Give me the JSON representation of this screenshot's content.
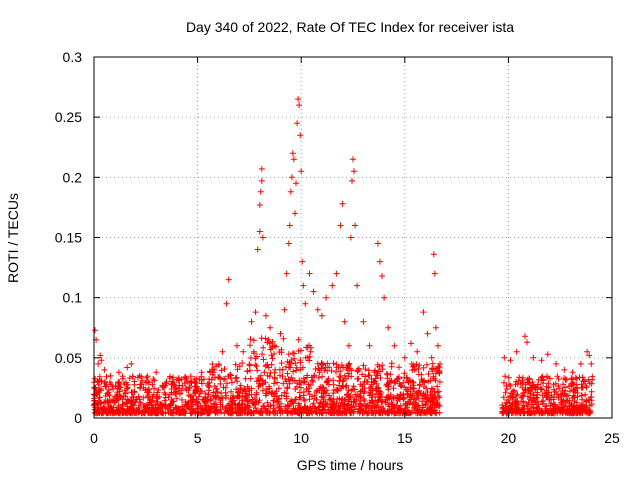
{
  "chart_data": {
    "type": "scatter",
    "title": "Day 340 of 2022, Rate Of TEC Index for receiver ista",
    "xlabel": "GPS time / hours",
    "ylabel": "ROTI / TECUs",
    "xlim": [
      0,
      25
    ],
    "ylim": [
      0,
      0.3
    ],
    "xticks": [
      0,
      5,
      10,
      15,
      20,
      25
    ],
    "xtick_labels": [
      "0",
      "5",
      "10",
      "15",
      "20",
      "25"
    ],
    "yticks": [
      0,
      0.05,
      0.1,
      0.15,
      0.2,
      0.25,
      0.3
    ],
    "ytick_labels": [
      "0",
      "0.05",
      "0.1",
      "0.15",
      "0.2",
      "0.25",
      "0.3"
    ],
    "grid": true,
    "legend": "none",
    "marker": "plus",
    "series_color": "#ff0000",
    "data_gap": [
      16.7,
      19.7
    ],
    "series": [
      {
        "points": [
          [
            0.05,
            0.073
          ],
          [
            0.1,
            0.065
          ],
          [
            0.2,
            0.045
          ],
          [
            0.3,
            0.052
          ],
          [
            0.35,
            0.048
          ],
          [
            0.5,
            0.04
          ],
          [
            0.8,
            0.035
          ],
          [
            1.2,
            0.038
          ],
          [
            1.6,
            0.042
          ],
          [
            1.8,
            0.045
          ],
          [
            2.2,
            0.035
          ],
          [
            2.6,
            0.03
          ],
          [
            3.0,
            0.038
          ],
          [
            3.5,
            0.03
          ],
          [
            4.0,
            0.032
          ],
          [
            4.5,
            0.03
          ],
          [
            5.2,
            0.038
          ],
          [
            5.8,
            0.04
          ],
          [
            6.2,
            0.055
          ],
          [
            6.4,
            0.095
          ],
          [
            6.5,
            0.115
          ],
          [
            6.9,
            0.06
          ],
          [
            7.2,
            0.055
          ],
          [
            7.6,
            0.08
          ],
          [
            7.8,
            0.088
          ],
          [
            7.9,
            0.14
          ],
          [
            8.0,
            0.155
          ],
          [
            8.0,
            0.177
          ],
          [
            8.05,
            0.188
          ],
          [
            8.1,
            0.197
          ],
          [
            8.1,
            0.207
          ],
          [
            8.15,
            0.15
          ],
          [
            8.3,
            0.085
          ],
          [
            8.5,
            0.075
          ],
          [
            8.7,
            0.06
          ],
          [
            9.0,
            0.07
          ],
          [
            9.2,
            0.09
          ],
          [
            9.3,
            0.12
          ],
          [
            9.4,
            0.145
          ],
          [
            9.45,
            0.16
          ],
          [
            9.5,
            0.188
          ],
          [
            9.55,
            0.2
          ],
          [
            9.6,
            0.22
          ],
          [
            9.65,
            0.215
          ],
          [
            9.7,
            0.17
          ],
          [
            9.75,
            0.195
          ],
          [
            9.8,
            0.245
          ],
          [
            9.85,
            0.265
          ],
          [
            9.9,
            0.26
          ],
          [
            9.95,
            0.235
          ],
          [
            10.0,
            0.205
          ],
          [
            10.05,
            0.13
          ],
          [
            10.1,
            0.11
          ],
          [
            10.2,
            0.095
          ],
          [
            10.4,
            0.12
          ],
          [
            10.6,
            0.105
          ],
          [
            10.8,
            0.09
          ],
          [
            11.0,
            0.085
          ],
          [
            11.2,
            0.1
          ],
          [
            11.5,
            0.11
          ],
          [
            11.7,
            0.12
          ],
          [
            11.9,
            0.16
          ],
          [
            12.0,
            0.178
          ],
          [
            12.1,
            0.08
          ],
          [
            12.3,
            0.06
          ],
          [
            12.4,
            0.15
          ],
          [
            12.45,
            0.197
          ],
          [
            12.5,
            0.215
          ],
          [
            12.55,
            0.205
          ],
          [
            12.6,
            0.16
          ],
          [
            12.7,
            0.11
          ],
          [
            13.0,
            0.08
          ],
          [
            13.3,
            0.06
          ],
          [
            13.7,
            0.145
          ],
          [
            13.8,
            0.13
          ],
          [
            13.9,
            0.118
          ],
          [
            14.0,
            0.1
          ],
          [
            14.2,
            0.075
          ],
          [
            14.5,
            0.06
          ],
          [
            15.0,
            0.05
          ],
          [
            15.3,
            0.062
          ],
          [
            15.6,
            0.055
          ],
          [
            15.9,
            0.088
          ],
          [
            16.1,
            0.07
          ],
          [
            16.3,
            0.05
          ],
          [
            16.4,
            0.136
          ],
          [
            16.45,
            0.12
          ],
          [
            16.5,
            0.075
          ],
          [
            16.6,
            0.06
          ],
          [
            16.7,
            0.045
          ],
          [
            19.8,
            0.05
          ],
          [
            20.1,
            0.048
          ],
          [
            20.4,
            0.055
          ],
          [
            20.8,
            0.068
          ],
          [
            20.9,
            0.063
          ],
          [
            21.2,
            0.05
          ],
          [
            21.6,
            0.048
          ],
          [
            21.9,
            0.053
          ],
          [
            22.3,
            0.045
          ],
          [
            22.7,
            0.04
          ],
          [
            23.1,
            0.038
          ],
          [
            23.5,
            0.045
          ],
          [
            23.8,
            0.055
          ],
          [
            23.9,
            0.052
          ],
          [
            24.0,
            0.045
          ]
        ]
      }
    ]
  }
}
